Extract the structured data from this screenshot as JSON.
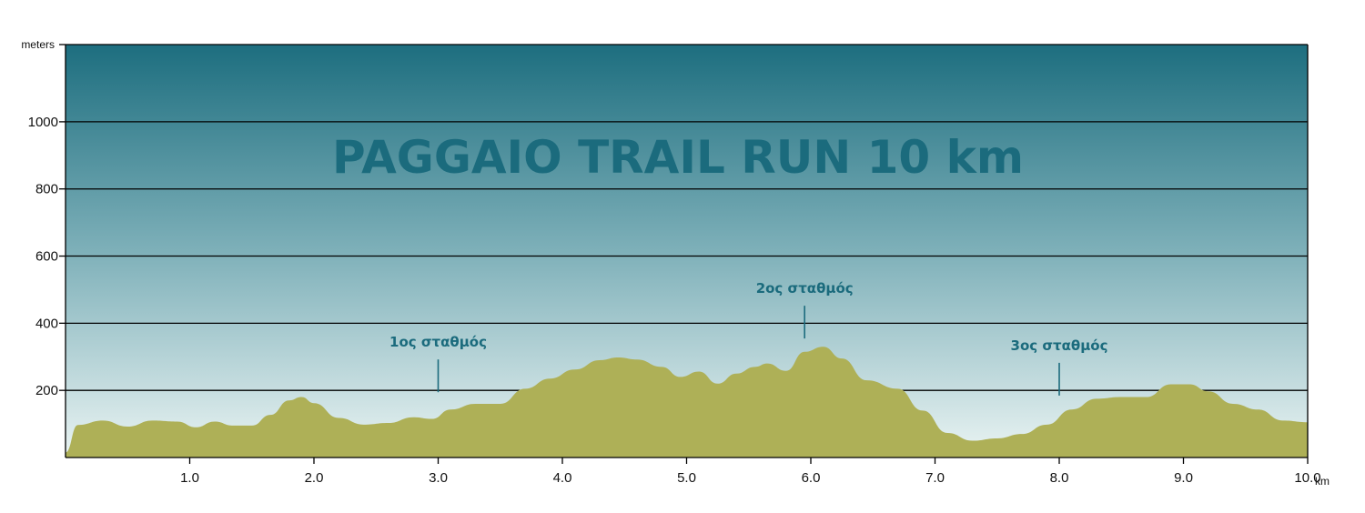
{
  "chart_data": {
    "type": "area",
    "title": "PAGGAIO TRAIL RUN 10 km",
    "ylabel": "meters",
    "xlabel": "km",
    "xlim": [
      0,
      10
    ],
    "ylim": [
      0,
      1230
    ],
    "y_ticks": [
      200,
      400,
      600,
      800,
      1000
    ],
    "y_tick_labels": [
      "200",
      "400",
      "600",
      "800",
      "1000"
    ],
    "x_ticks": [
      1,
      2,
      3,
      4,
      5,
      6,
      7,
      8,
      9,
      10
    ],
    "x_tick_labels": [
      "1.0",
      "2.0",
      "3.0",
      "4.0",
      "5.0",
      "6.0",
      "7.0",
      "8.0",
      "9.0",
      "10.0"
    ],
    "grid": true,
    "series": [
      {
        "x": [
          0,
          0.1,
          0.3,
          0.5,
          0.7,
          0.9,
          1.05,
          1.2,
          1.35,
          1.5,
          1.65,
          1.8,
          1.9,
          2.0,
          2.2,
          2.4,
          2.6,
          2.8,
          2.95,
          3.1,
          3.3,
          3.5,
          3.7,
          3.9,
          4.1,
          4.3,
          4.45,
          4.6,
          4.8,
          4.95,
          5.1,
          5.25,
          5.4,
          5.55,
          5.65,
          5.8,
          5.95,
          6.1,
          6.25,
          6.45,
          6.7,
          6.9,
          7.1,
          7.3,
          7.5,
          7.7,
          7.9,
          8.1,
          8.3,
          8.5,
          8.7,
          8.9,
          9.05,
          9.2,
          9.4,
          9.6,
          9.8,
          10.0
        ],
        "y": [
          15,
          97,
          110,
          92,
          110,
          107,
          90,
          107,
          95,
          95,
          127,
          170,
          180,
          162,
          118,
          98,
          103,
          120,
          115,
          143,
          160,
          160,
          205,
          235,
          262,
          290,
          298,
          292,
          270,
          240,
          256,
          220,
          250,
          270,
          280,
          258,
          315,
          330,
          295,
          230,
          205,
          140,
          73,
          50,
          57,
          70,
          98,
          143,
          175,
          180,
          180,
          218,
          218,
          197,
          160,
          143,
          110,
          105
        ]
      }
    ],
    "annotations": [
      {
        "label": "1ος σταθμός",
        "x": 3.0,
        "y": 330
      },
      {
        "label": "2ος σταθμός",
        "x": 5.95,
        "y": 490
      },
      {
        "label": "3ος σταθμός",
        "x": 8.0,
        "y": 320
      }
    ],
    "colors": {
      "sky_top": "#1d6e7f",
      "sky_mid": "#7eb0b9",
      "sky_bottom": "#eaf4f3",
      "terrain": "#aeb057",
      "title": "#1b6b7d",
      "gridline": "#000000"
    }
  }
}
